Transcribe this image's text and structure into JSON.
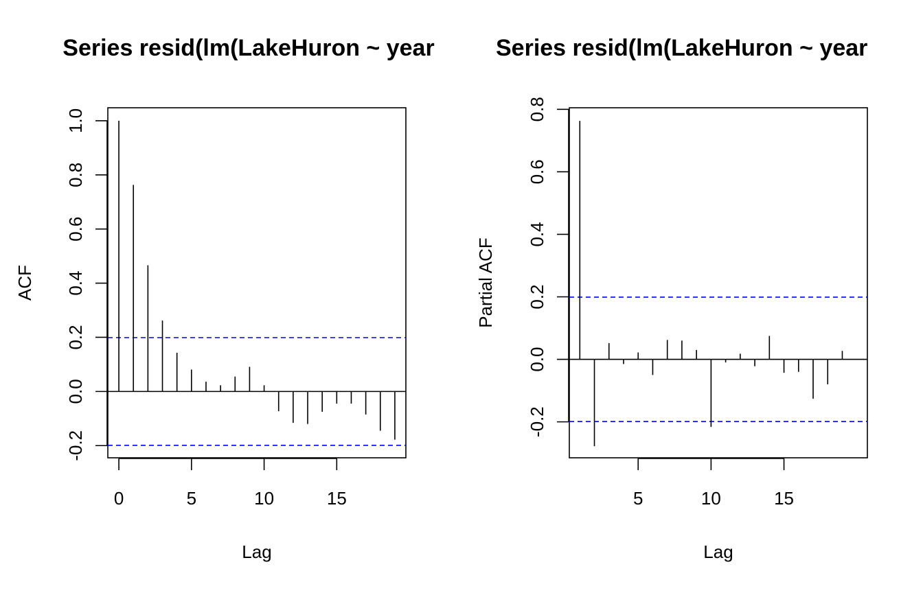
{
  "chart_data": [
    {
      "type": "bar",
      "title": "Series  resid(lm(LakeHuron ~ year",
      "xlabel": "Lag",
      "ylabel": "ACF",
      "xlim": [
        -0.76,
        19.76
      ],
      "ylim": [
        -0.245,
        1.048
      ],
      "x_ticks": [
        0,
        5,
        10,
        15
      ],
      "x_tick_labels": [
        "0",
        "5",
        "10",
        "15"
      ],
      "y_ticks": [
        -0.2,
        0.0,
        0.2,
        0.4,
        0.6,
        0.8,
        1.0
      ],
      "y_tick_labels": [
        "-0.2",
        "0.0",
        "0.2",
        "0.4",
        "0.6",
        "0.8",
        "1.0"
      ],
      "confidence_bounds": [
        0.199,
        -0.199
      ],
      "bound_color": "#0000ff",
      "series": [
        {
          "lags": [
            0,
            1,
            2,
            3,
            4,
            5,
            6,
            7,
            8,
            9,
            10,
            11,
            12,
            13,
            14,
            15,
            16,
            17,
            18,
            19
          ],
          "values": [
            1.0,
            0.763,
            0.466,
            0.262,
            0.143,
            0.081,
            0.036,
            0.023,
            0.055,
            0.091,
            0.023,
            -0.073,
            -0.116,
            -0.12,
            -0.075,
            -0.045,
            -0.045,
            -0.085,
            -0.145,
            -0.178
          ]
        }
      ],
      "grid": false,
      "legend": "none"
    },
    {
      "type": "bar",
      "title": "Series  resid(lm(LakeHuron ~ year",
      "xlabel": "Lag",
      "ylabel": "Partial ACF",
      "xlim": [
        0.28,
        20.72
      ],
      "ylim": [
        -0.315,
        0.805
      ],
      "x_ticks": [
        5,
        10,
        15
      ],
      "x_tick_labels": [
        "5",
        "10",
        "15"
      ],
      "y_ticks": [
        -0.2,
        0.0,
        0.2,
        0.4,
        0.6,
        0.8
      ],
      "y_tick_labels": [
        "-0.2",
        "0.0",
        "0.2",
        "0.4",
        "0.6",
        "0.8"
      ],
      "confidence_bounds": [
        0.199,
        -0.199
      ],
      "bound_color": "#0000ff",
      "series": [
        {
          "lags": [
            1,
            2,
            3,
            4,
            5,
            6,
            7,
            8,
            9,
            10,
            11,
            12,
            13,
            14,
            15,
            16,
            17,
            18,
            19
          ],
          "values": [
            0.763,
            -0.278,
            0.052,
            -0.015,
            0.022,
            -0.05,
            0.062,
            0.06,
            0.03,
            -0.216,
            -0.01,
            0.018,
            -0.022,
            0.075,
            -0.043,
            -0.04,
            -0.126,
            -0.08,
            0.027
          ]
        }
      ],
      "grid": false,
      "legend": "none"
    }
  ]
}
